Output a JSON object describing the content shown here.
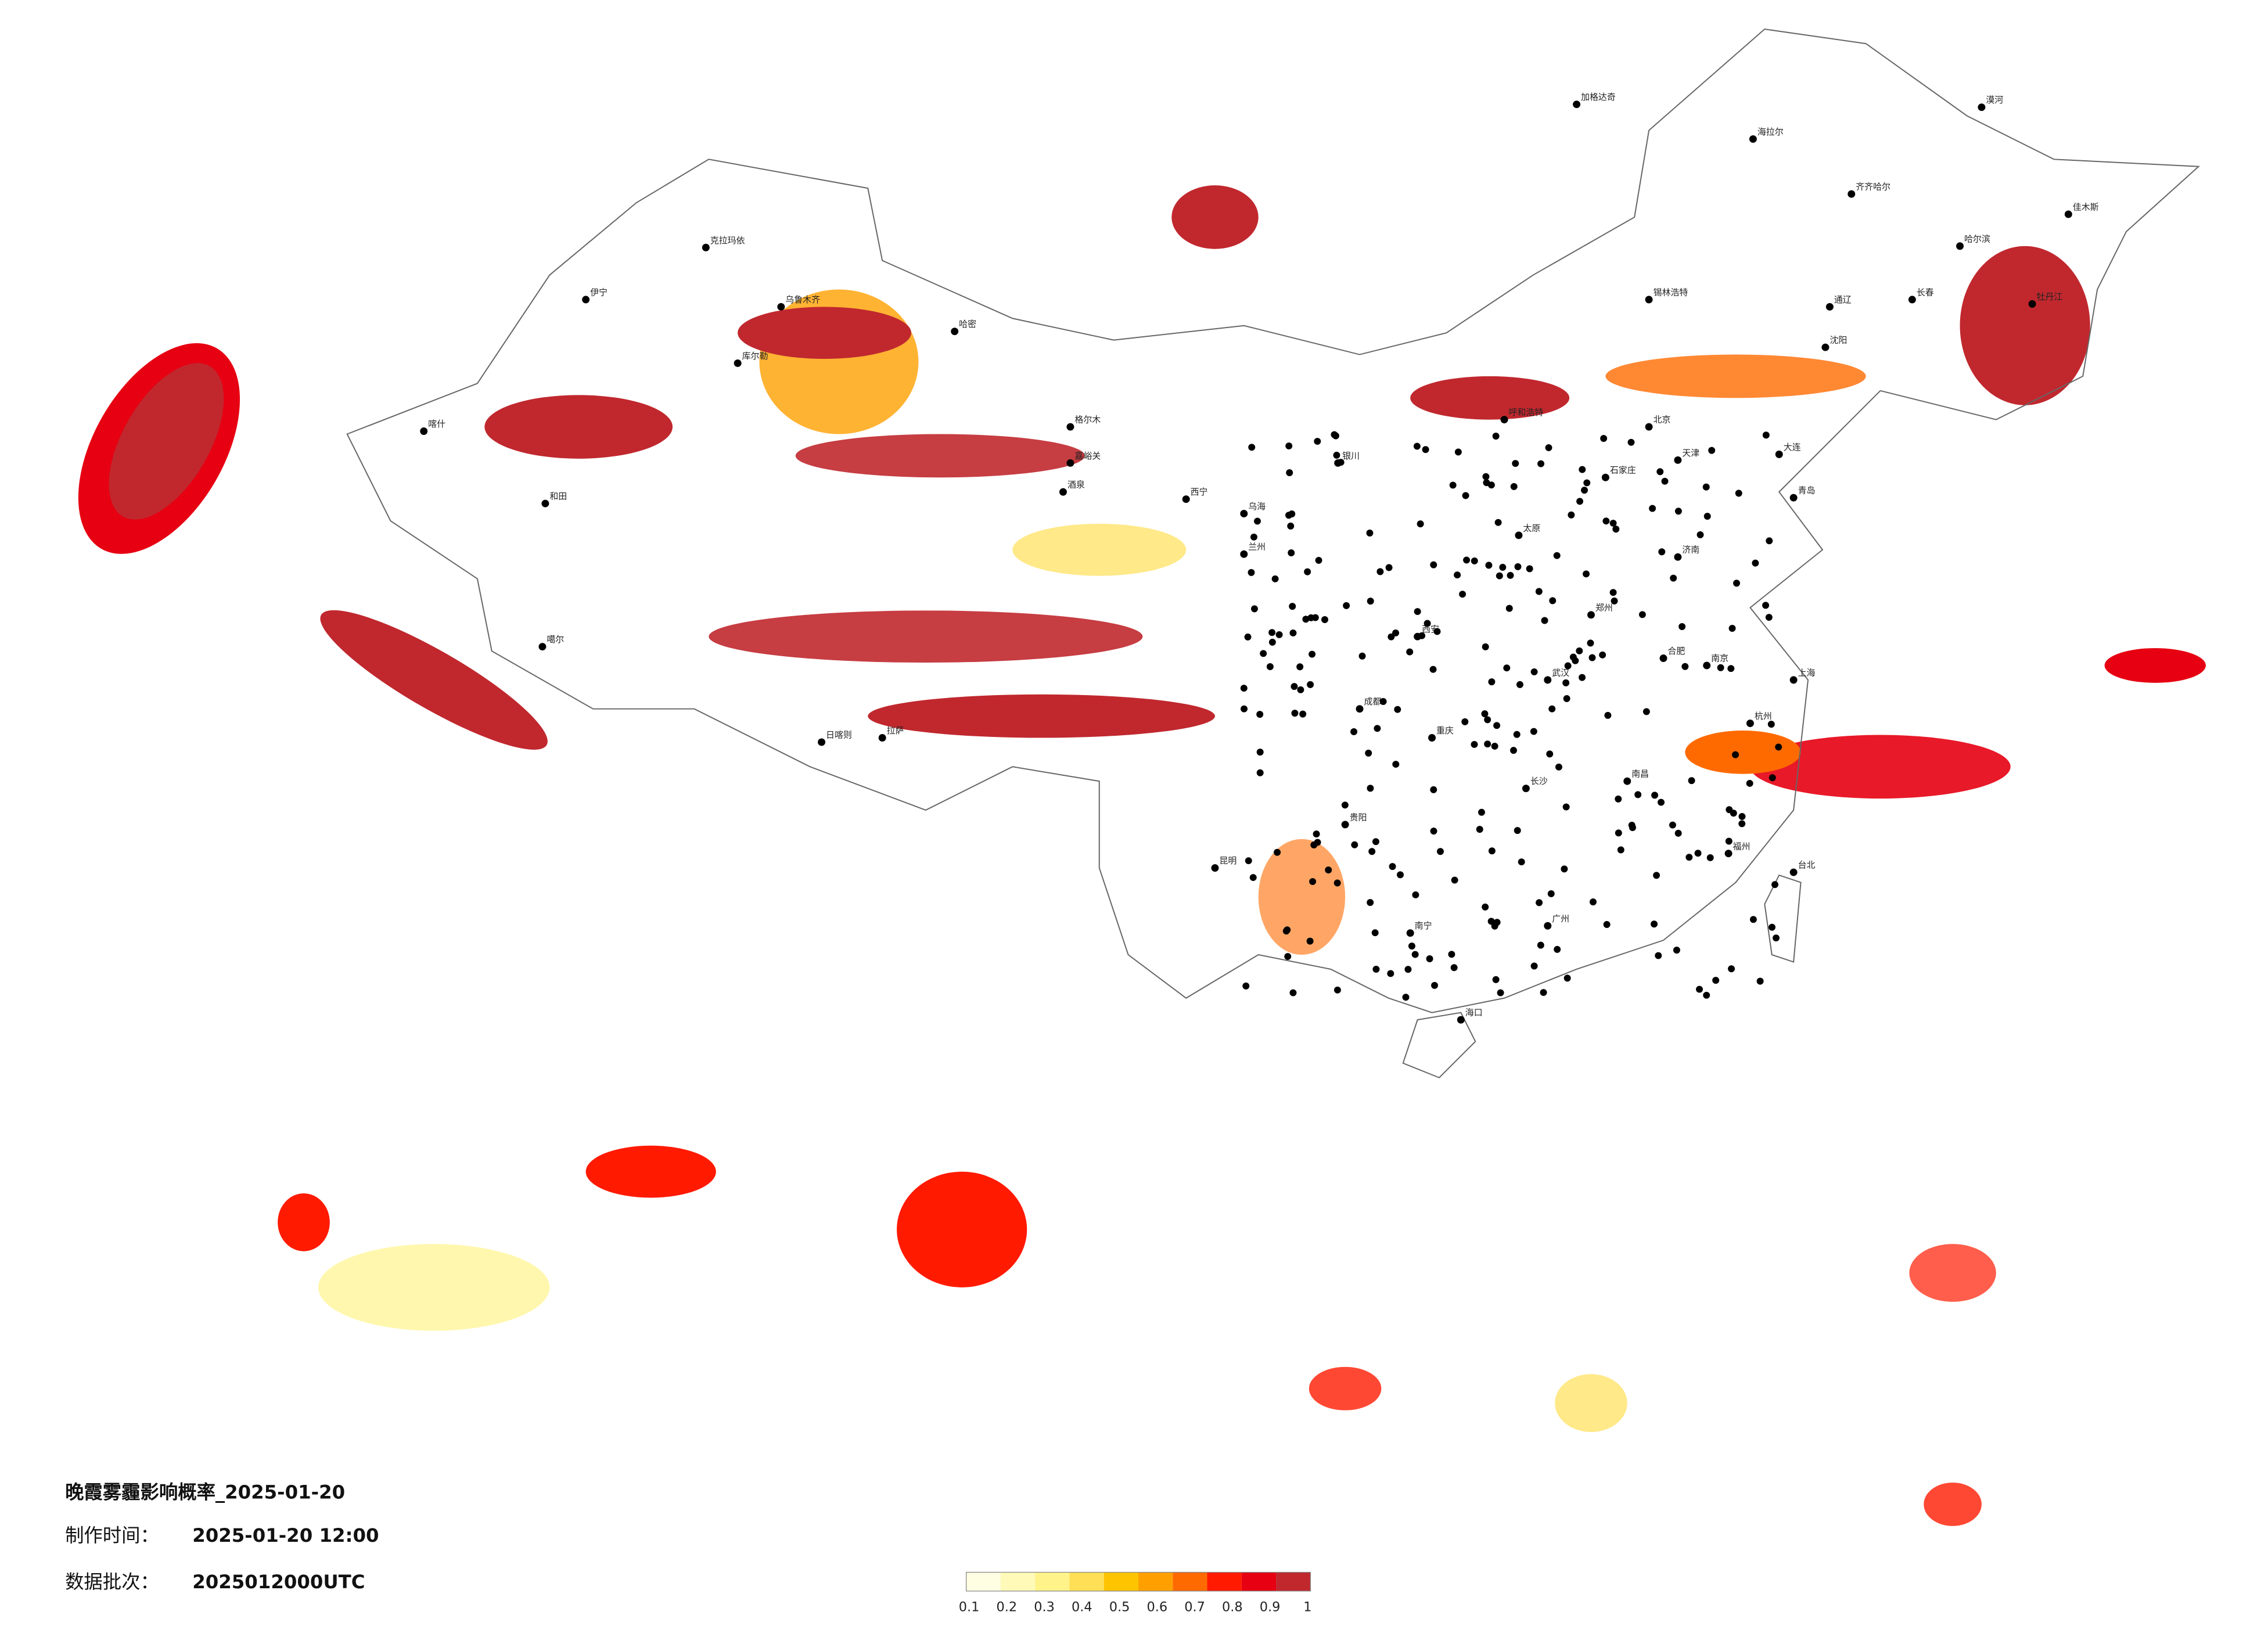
{
  "header": {
    "title": "晚霞雾霾影响概率_2025-01-20",
    "made_label": "制作时间：",
    "made_time": "2025-01-20 12:00",
    "batch_label": "数据批次：",
    "batch": "2025012000UTC"
  },
  "legend": {
    "colors": [
      "#fffde2",
      "#fffab8",
      "#fff38a",
      "#ffdf55",
      "#ffc400",
      "#ffa000",
      "#ff6a00",
      "#ff1a00",
      "#e60012",
      "#c0282e"
    ],
    "ticks": [
      0.1,
      0.2,
      0.3,
      0.4,
      0.5,
      0.6,
      0.7,
      0.8,
      0.9,
      1
    ]
  },
  "cities": [
    "漠河",
    "加格达奇",
    "海拉尔",
    "齐齐哈尔",
    "哈尔滨",
    "佳木斯",
    "牡丹江",
    "长春",
    "通辽",
    "沈阳",
    "大连",
    "锡林浩特",
    "呼和浩特",
    "北京",
    "天津",
    "石家庄",
    "太原",
    "济南",
    "青岛",
    "郑州",
    "西安",
    "银川",
    "兰州",
    "西宁",
    "格尔木",
    "乌鲁木齐",
    "克拉玛依",
    "伊宁",
    "库尔勒",
    "哈密",
    "喀什",
    "和田",
    "噶尔",
    "日喀则",
    "拉萨",
    "成都",
    "重庆",
    "武汉",
    "合肥",
    "南京",
    "上海",
    "杭州",
    "长沙",
    "南昌",
    "福州",
    "台北",
    "贵阳",
    "昆明",
    "南宁",
    "广州",
    "海口",
    "嘉峪关",
    "酒泉",
    "乌海"
  ]
}
